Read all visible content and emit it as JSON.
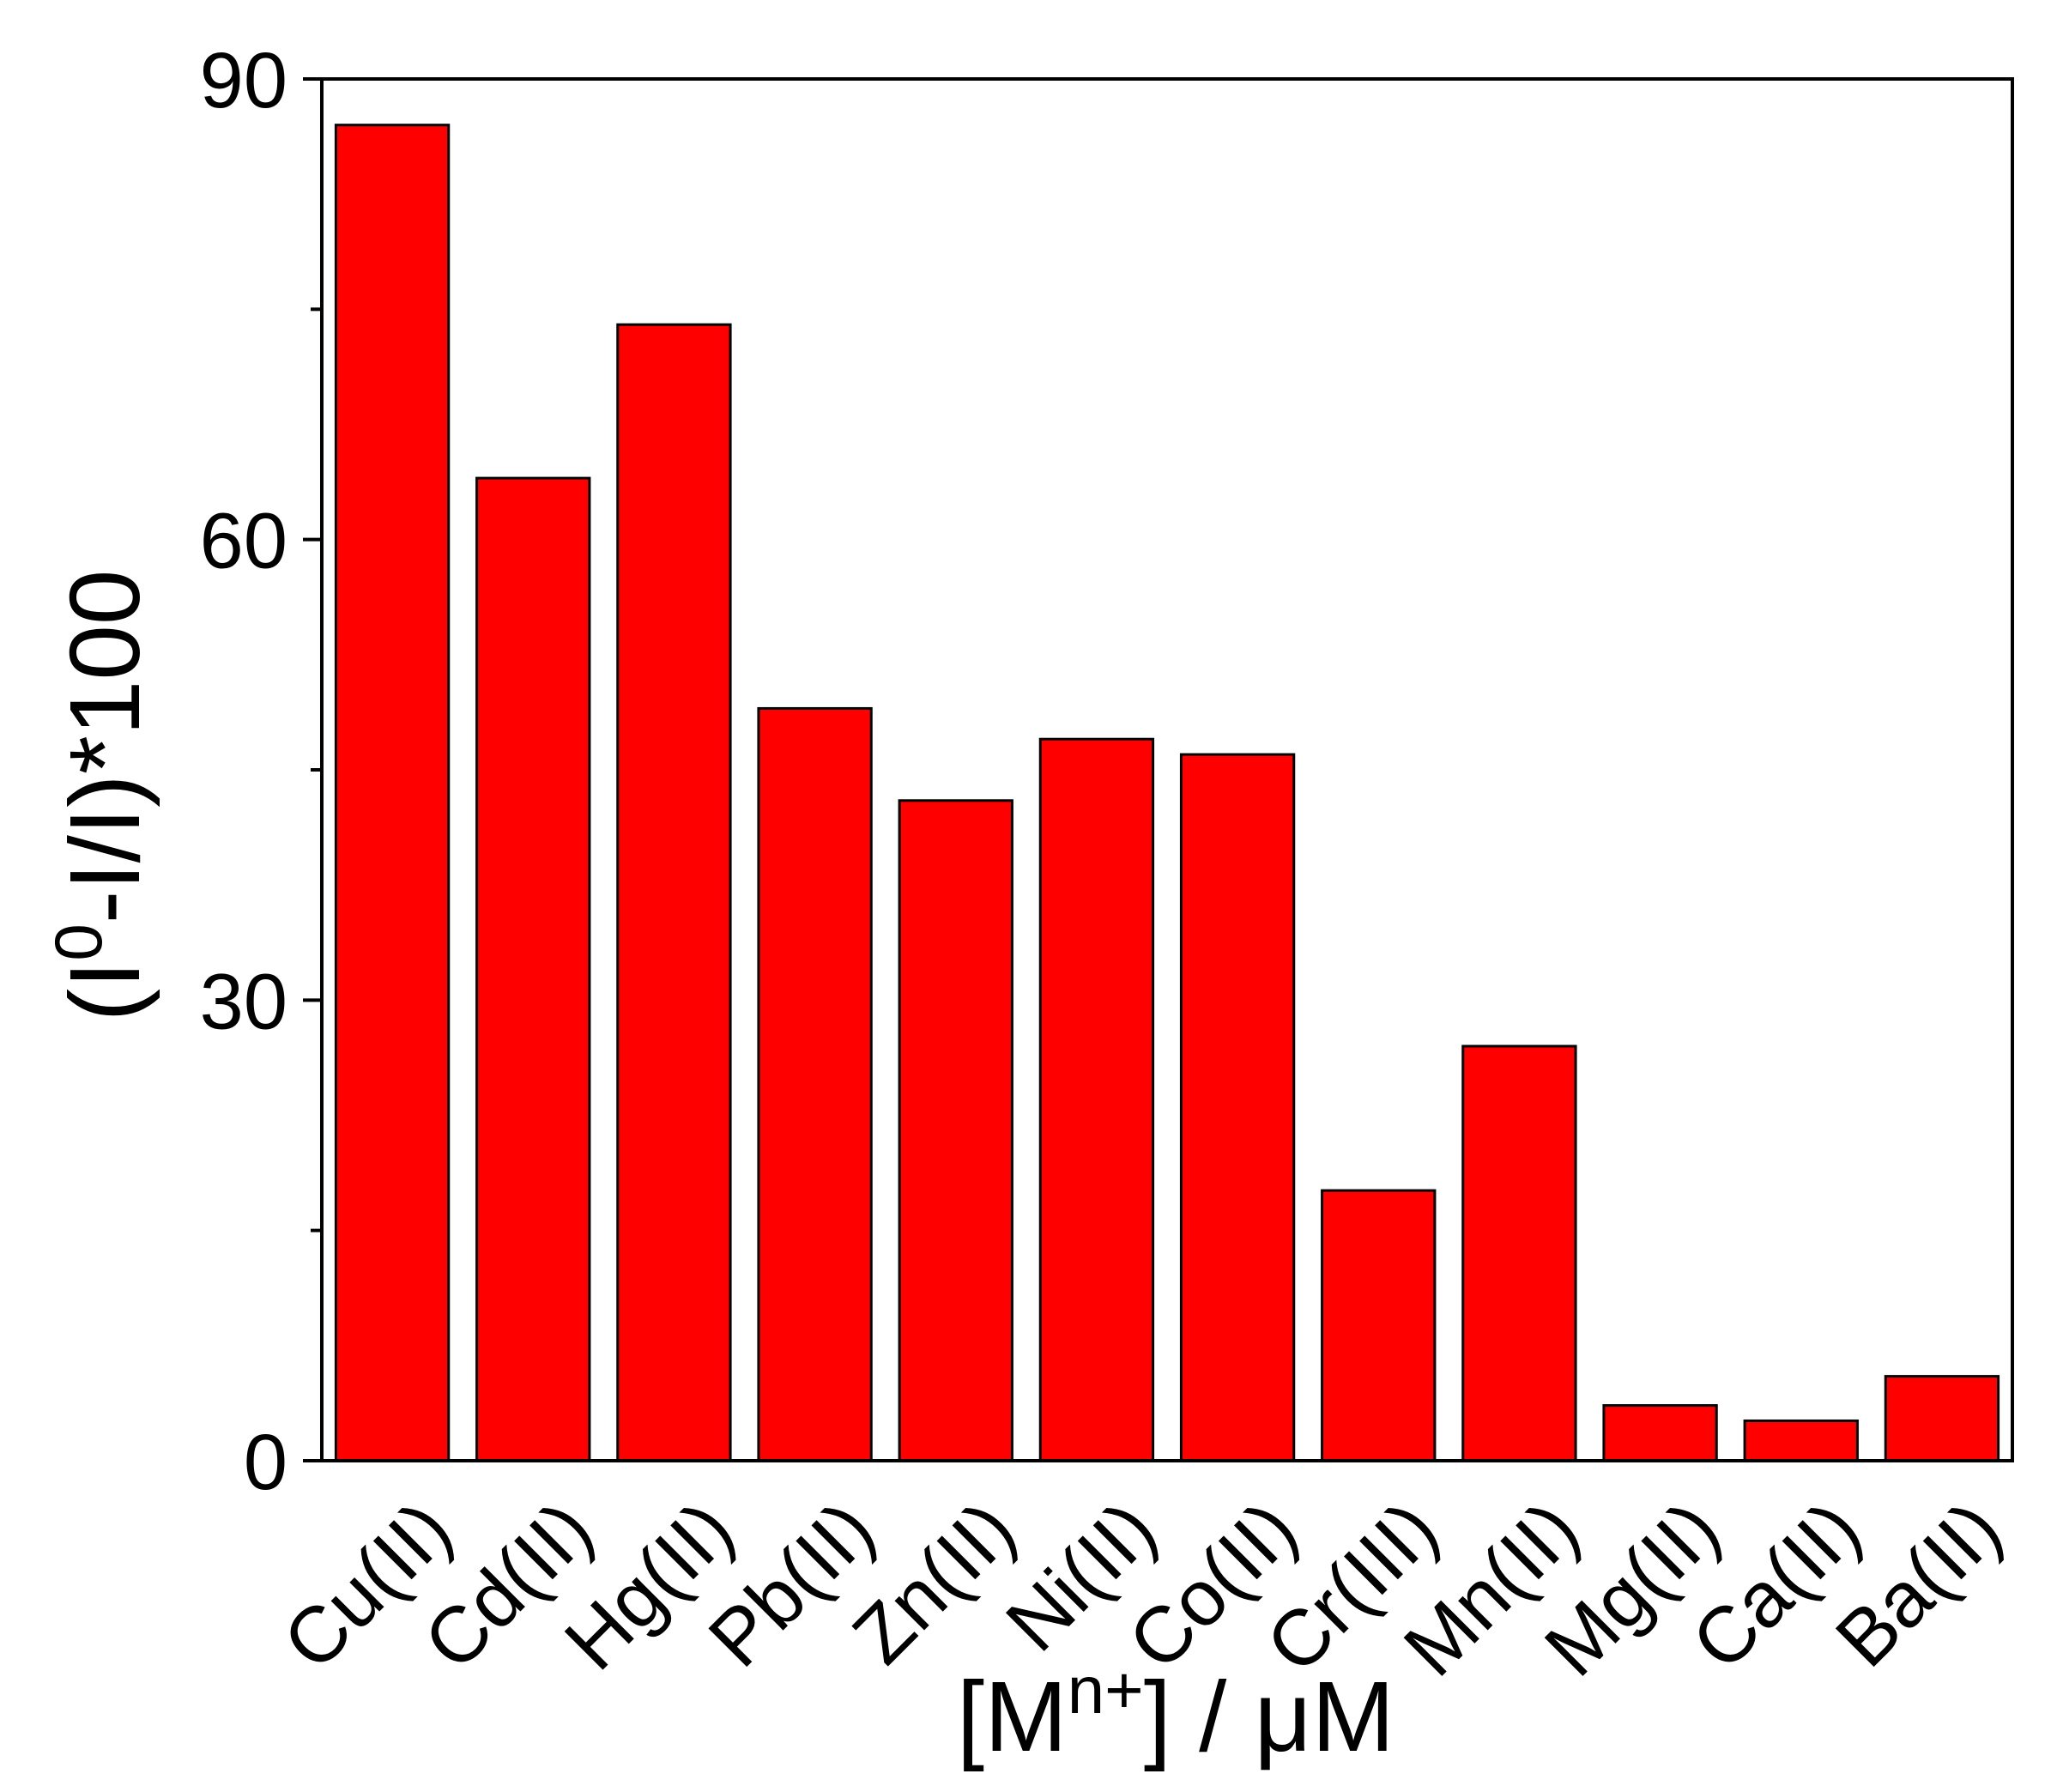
{
  "chart_data": {
    "type": "bar",
    "categories": [
      "Cu(II)",
      "Cd(II)",
      "Hg(II)",
      "Pb(II)",
      "Zn(II)",
      "Ni(II)",
      "Co(II)",
      "Cr(III)",
      "Mn(II)",
      "Mg(II)",
      "Ca(II)",
      "Ba(II)"
    ],
    "values": [
      87,
      64,
      74,
      49,
      43,
      47,
      46,
      17.6,
      27,
      3.6,
      2.6,
      5.5
    ],
    "ylim": [
      0,
      90
    ],
    "yticks": [
      0,
      30,
      60,
      90
    ],
    "yticks_minor": [
      15,
      45,
      75
    ],
    "ylabel": {
      "pre": "(I",
      "sup": "0",
      "post": "-I/I)*100"
    },
    "xlabel": {
      "pre": "[M",
      "sup": "n+",
      "post": "] / μM"
    },
    "bar_color": "#ff0000",
    "bar_edge_color": "#000000",
    "grid": false,
    "legend": "none"
  }
}
